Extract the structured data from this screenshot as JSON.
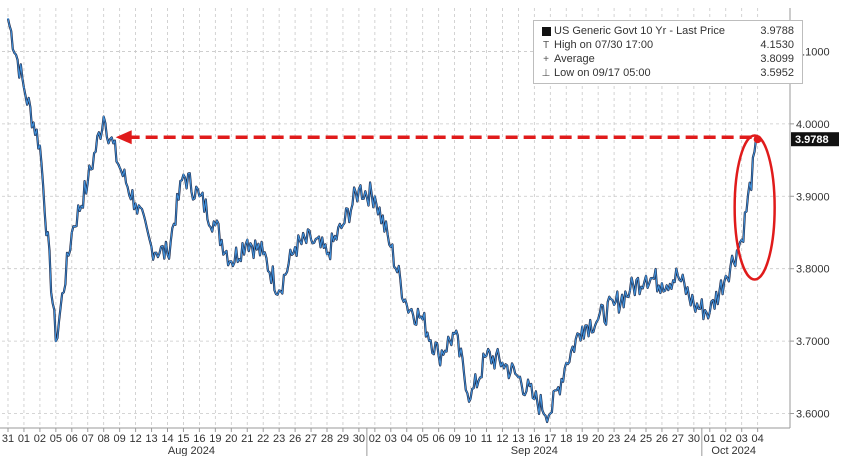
{
  "chart_data": {
    "type": "line",
    "series": [
      {
        "name": "US Generic Govt 10 Yr - Last Price",
        "color": "#3f8fd8",
        "x": [
          "07/31",
          "08/01",
          "08/02",
          "08/05",
          "08/06",
          "08/07",
          "08/08",
          "08/09",
          "08/12",
          "08/13",
          "08/14",
          "08/15",
          "08/16",
          "08/19",
          "08/20",
          "08/21",
          "08/22",
          "08/23",
          "08/26",
          "08/27",
          "08/28",
          "08/29",
          "08/30",
          "09/02",
          "09/03",
          "09/04",
          "09/05",
          "09/06",
          "09/09",
          "09/10",
          "09/11",
          "09/12",
          "09/13",
          "09/16",
          "09/17",
          "09/18",
          "09/19",
          "09/20",
          "09/23",
          "09/24",
          "09/25",
          "09/26",
          "09/27",
          "09/30",
          "10/01",
          "10/02",
          "10/03",
          "10/04"
        ],
        "y": [
          4.145,
          4.05,
          3.97,
          3.7,
          3.85,
          3.92,
          4.01,
          3.94,
          3.89,
          3.83,
          3.82,
          3.93,
          3.9,
          3.86,
          3.81,
          3.84,
          3.82,
          3.77,
          3.83,
          3.84,
          3.82,
          3.86,
          3.91,
          3.9,
          3.83,
          3.75,
          3.73,
          3.68,
          3.71,
          3.62,
          3.68,
          3.67,
          3.65,
          3.62,
          3.6,
          3.67,
          3.72,
          3.73,
          3.75,
          3.77,
          3.79,
          3.78,
          3.79,
          3.75,
          3.74,
          3.79,
          3.84,
          3.9788
        ]
      }
    ],
    "ylim": [
      3.58,
      4.16
    ],
    "yticks": [
      "4.1000",
      "4.0000",
      "3.9000",
      "3.8000",
      "3.7000",
      "3.6000"
    ],
    "ytick_values": [
      4.1,
      4.0,
      3.9,
      3.8,
      3.7,
      3.6
    ],
    "xticks": [
      "31",
      "01",
      "02",
      "05",
      "06",
      "07",
      "08",
      "09",
      "12",
      "13",
      "14",
      "15",
      "16",
      "19",
      "20",
      "21",
      "22",
      "23",
      "26",
      "27",
      "28",
      "29",
      "30",
      "02",
      "03",
      "04",
      "05",
      "06",
      "09",
      "10",
      "11",
      "12",
      "13",
      "16",
      "17",
      "18",
      "19",
      "20",
      "23",
      "24",
      "25",
      "26",
      "27",
      "30",
      "01",
      "02",
      "03",
      "04"
    ],
    "month_labels": [
      "Aug 2024",
      "Sep 2024",
      "Oct 2024"
    ],
    "last_price_label": "3.9788",
    "grid": true,
    "legend_position": "top-right",
    "annotation_color": "#e01b1b",
    "legend": {
      "title": "US Generic Govt 10 Yr - Last Price",
      "title_value": "3.9788",
      "items": [
        {
          "label": "High on 07/30 17:00",
          "value": "4.1530",
          "symbol": "T"
        },
        {
          "label": "Average",
          "value": "3.8099",
          "symbol": "+"
        },
        {
          "label": "Low on 09/17 05:00",
          "value": "3.5952",
          "symbol": "⊥"
        }
      ]
    }
  }
}
